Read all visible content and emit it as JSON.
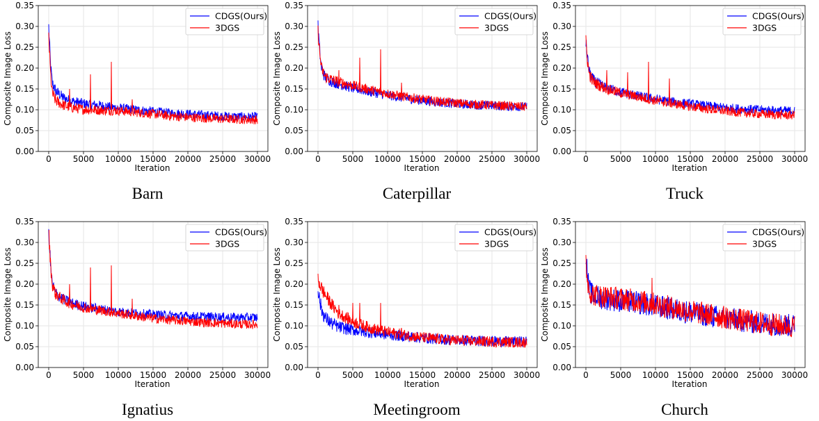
{
  "chart_data": [
    {
      "type": "line",
      "caption": "Barn",
      "xlabel": "Iteration",
      "ylabel": "Composite Image Loss",
      "xlim": [
        -1500,
        31500
      ],
      "ylim": [
        0,
        0.35
      ],
      "xticks": [
        0,
        5000,
        10000,
        15000,
        20000,
        25000,
        30000
      ],
      "yticks": [
        "0.00",
        "0.05",
        "0.10",
        "0.15",
        "0.20",
        "0.25",
        "0.30",
        "0.35"
      ],
      "grid": true,
      "legend_position": "top-right",
      "series": [
        {
          "name": "CDGS(Ours)",
          "color": "#0000ff",
          "x": [
            0,
            250,
            500,
            1000,
            2000,
            3000,
            5000,
            7500,
            10000,
            12500,
            15000,
            17500,
            20000,
            22500,
            25000,
            27500,
            30000
          ],
          "values": [
            0.3,
            0.21,
            0.165,
            0.145,
            0.13,
            0.122,
            0.115,
            0.11,
            0.104,
            0.1,
            0.096,
            0.092,
            0.09,
            0.087,
            0.085,
            0.083,
            0.083
          ]
        },
        {
          "name": "3DGS",
          "color": "#ff0000",
          "x": [
            0,
            250,
            500,
            1000,
            2000,
            3000,
            5000,
            7500,
            10000,
            12500,
            15000,
            17500,
            20000,
            22500,
            25000,
            27500,
            30000
          ],
          "values": [
            0.28,
            0.19,
            0.14,
            0.122,
            0.112,
            0.106,
            0.101,
            0.099,
            0.098,
            0.094,
            0.09,
            0.085,
            0.082,
            0.08,
            0.078,
            0.077,
            0.076
          ],
          "spikes": [
            [
              3000,
              0.15
            ],
            [
              6000,
              0.185
            ],
            [
              9000,
              0.215
            ],
            [
              12000,
              0.125
            ]
          ]
        }
      ]
    },
    {
      "type": "line",
      "caption": "Caterpillar",
      "xlabel": "Iteration",
      "ylabel": "Composite Image Loss",
      "xlim": [
        -1500,
        31500
      ],
      "ylim": [
        0,
        0.35
      ],
      "xticks": [
        0,
        5000,
        10000,
        15000,
        20000,
        25000,
        30000
      ],
      "yticks": [
        "0.00",
        "0.05",
        "0.10",
        "0.15",
        "0.20",
        "0.25",
        "0.30",
        "0.35"
      ],
      "grid": true,
      "legend_position": "top-right",
      "series": [
        {
          "name": "CDGS(Ours)",
          "color": "#0000ff",
          "x": [
            0,
            250,
            500,
            1000,
            2000,
            3000,
            5000,
            7500,
            10000,
            12500,
            15000,
            17500,
            20000,
            22500,
            25000,
            27500,
            30000
          ],
          "values": [
            0.3,
            0.24,
            0.2,
            0.178,
            0.168,
            0.162,
            0.152,
            0.143,
            0.135,
            0.128,
            0.122,
            0.118,
            0.114,
            0.112,
            0.11,
            0.108,
            0.107
          ]
        },
        {
          "name": "3DGS",
          "color": "#ff0000",
          "x": [
            0,
            250,
            500,
            1000,
            2000,
            3000,
            5000,
            7500,
            10000,
            12500,
            15000,
            17500,
            20000,
            22500,
            25000,
            27500,
            30000
          ],
          "values": [
            0.29,
            0.235,
            0.2,
            0.18,
            0.172,
            0.167,
            0.158,
            0.148,
            0.139,
            0.131,
            0.125,
            0.12,
            0.116,
            0.113,
            0.111,
            0.109,
            0.107
          ],
          "spikes": [
            [
              3000,
              0.195
            ],
            [
              6000,
              0.225
            ],
            [
              9000,
              0.245
            ],
            [
              12000,
              0.165
            ]
          ]
        }
      ]
    },
    {
      "type": "line",
      "caption": "Truck",
      "xlabel": "Iteration",
      "ylabel": "Composite Image Loss",
      "xlim": [
        -1500,
        31500
      ],
      "ylim": [
        0,
        0.35
      ],
      "xticks": [
        0,
        5000,
        10000,
        15000,
        20000,
        25000,
        30000
      ],
      "yticks": [
        "0.00",
        "0.05",
        "0.10",
        "0.15",
        "0.20",
        "0.25",
        "0.30",
        "0.35"
      ],
      "grid": true,
      "legend_position": "top-right",
      "series": [
        {
          "name": "CDGS(Ours)",
          "color": "#0000ff",
          "x": [
            0,
            250,
            500,
            1000,
            2000,
            3000,
            5000,
            7500,
            10000,
            12500,
            15000,
            17500,
            20000,
            22500,
            25000,
            27500,
            30000
          ],
          "values": [
            0.26,
            0.22,
            0.19,
            0.172,
            0.16,
            0.152,
            0.142,
            0.133,
            0.125,
            0.119,
            0.114,
            0.109,
            0.105,
            0.102,
            0.1,
            0.098,
            0.097
          ]
        },
        {
          "name": "3DGS",
          "color": "#ff0000",
          "x": [
            0,
            250,
            500,
            1000,
            2000,
            3000,
            5000,
            7500,
            10000,
            12500,
            15000,
            17500,
            20000,
            22500,
            25000,
            27500,
            30000
          ],
          "values": [
            0.265,
            0.215,
            0.185,
            0.168,
            0.158,
            0.15,
            0.14,
            0.131,
            0.122,
            0.115,
            0.108,
            0.102,
            0.097,
            0.093,
            0.09,
            0.088,
            0.087
          ],
          "spikes": [
            [
              3000,
              0.195
            ],
            [
              6000,
              0.19
            ],
            [
              9000,
              0.215
            ],
            [
              12000,
              0.175
            ]
          ]
        }
      ]
    },
    {
      "type": "line",
      "caption": "Ignatius",
      "xlabel": "Iteration",
      "ylabel": "Composite Image Loss",
      "xlim": [
        -1500,
        31500
      ],
      "ylim": [
        0,
        0.35
      ],
      "xticks": [
        0,
        5000,
        10000,
        15000,
        20000,
        25000,
        30000
      ],
      "yticks": [
        "0.00",
        "0.05",
        "0.10",
        "0.15",
        "0.20",
        "0.25",
        "0.30",
        "0.35"
      ],
      "grid": true,
      "legend_position": "top-right",
      "series": [
        {
          "name": "CDGS(Ours)",
          "color": "#0000ff",
          "x": [
            0,
            250,
            500,
            1000,
            2000,
            3000,
            5000,
            7500,
            10000,
            12500,
            15000,
            17500,
            20000,
            22500,
            25000,
            27500,
            30000
          ],
          "values": [
            0.33,
            0.25,
            0.2,
            0.178,
            0.165,
            0.156,
            0.147,
            0.14,
            0.134,
            0.13,
            0.127,
            0.125,
            0.123,
            0.122,
            0.121,
            0.12,
            0.12
          ]
        },
        {
          "name": "3DGS",
          "color": "#ff0000",
          "x": [
            0,
            250,
            500,
            1000,
            2000,
            3000,
            5000,
            7500,
            10000,
            12500,
            15000,
            17500,
            20000,
            22500,
            25000,
            27500,
            30000
          ],
          "values": [
            0.33,
            0.25,
            0.2,
            0.176,
            0.163,
            0.154,
            0.144,
            0.137,
            0.13,
            0.124,
            0.118,
            0.114,
            0.111,
            0.108,
            0.106,
            0.104,
            0.103
          ],
          "spikes": [
            [
              3000,
              0.2
            ],
            [
              6000,
              0.24
            ],
            [
              9000,
              0.245
            ],
            [
              12000,
              0.165
            ]
          ]
        }
      ]
    },
    {
      "type": "line",
      "caption": "Meetingroom",
      "xlabel": "Iteration",
      "ylabel": "Composite Image Loss",
      "xlim": [
        -1500,
        31500
      ],
      "ylim": [
        0,
        0.35
      ],
      "xticks": [
        0,
        5000,
        10000,
        15000,
        20000,
        25000,
        30000
      ],
      "yticks": [
        "0.00",
        "0.05",
        "0.10",
        "0.15",
        "0.20",
        "0.25",
        "0.30",
        "0.35"
      ],
      "grid": true,
      "legend_position": "top-right",
      "series": [
        {
          "name": "CDGS(Ours)",
          "color": "#0000ff",
          "x": [
            0,
            250,
            500,
            1000,
            2000,
            3000,
            5000,
            7500,
            10000,
            12500,
            15000,
            17500,
            20000,
            22500,
            25000,
            27500,
            30000
          ],
          "values": [
            0.19,
            0.16,
            0.14,
            0.12,
            0.105,
            0.097,
            0.09,
            0.084,
            0.079,
            0.075,
            0.071,
            0.068,
            0.066,
            0.064,
            0.063,
            0.062,
            0.062
          ]
        },
        {
          "name": "3DGS",
          "color": "#ff0000",
          "x": [
            0,
            250,
            500,
            1000,
            2000,
            3000,
            5000,
            7500,
            10000,
            12500,
            15000,
            17500,
            20000,
            22500,
            25000,
            27500,
            30000
          ],
          "values": [
            0.215,
            0.2,
            0.19,
            0.175,
            0.15,
            0.13,
            0.11,
            0.095,
            0.085,
            0.078,
            0.072,
            0.068,
            0.065,
            0.063,
            0.062,
            0.061,
            0.06
          ],
          "spikes": [
            [
              3000,
              0.15
            ],
            [
              5000,
              0.155
            ],
            [
              6000,
              0.155
            ],
            [
              9000,
              0.155
            ],
            [
              12000,
              0.095
            ]
          ]
        }
      ]
    },
    {
      "type": "line",
      "caption": "Church",
      "xlabel": "Iteration",
      "ylabel": "Composite Image Loss",
      "xlim": [
        -1500,
        31500
      ],
      "ylim": [
        0,
        0.35
      ],
      "xticks": [
        0,
        5000,
        10000,
        15000,
        20000,
        25000,
        30000
      ],
      "yticks": [
        "0.00",
        "0.05",
        "0.10",
        "0.15",
        "0.20",
        "0.25",
        "0.30",
        "0.35"
      ],
      "grid": true,
      "legend_position": "top-right",
      "series": [
        {
          "name": "CDGS(Ours)",
          "color": "#0000ff",
          "x": [
            0,
            250,
            500,
            1000,
            2000,
            3000,
            5000,
            7500,
            10000,
            12500,
            15000,
            17500,
            20000,
            22500,
            25000,
            27500,
            30000
          ],
          "values": [
            0.275,
            0.21,
            0.185,
            0.172,
            0.168,
            0.165,
            0.16,
            0.155,
            0.148,
            0.14,
            0.132,
            0.125,
            0.118,
            0.112,
            0.107,
            0.103,
            0.1
          ]
        },
        {
          "name": "3DGS",
          "color": "#ff0000",
          "x": [
            0,
            250,
            500,
            1000,
            2000,
            3000,
            5000,
            7500,
            10000,
            12500,
            15000,
            17500,
            20000,
            22500,
            25000,
            27500,
            30000
          ],
          "values": [
            0.26,
            0.205,
            0.185,
            0.175,
            0.172,
            0.17,
            0.165,
            0.16,
            0.152,
            0.143,
            0.135,
            0.127,
            0.12,
            0.113,
            0.107,
            0.102,
            0.098
          ],
          "spikes": [
            [
              9500,
              0.215
            ]
          ]
        }
      ]
    }
  ]
}
